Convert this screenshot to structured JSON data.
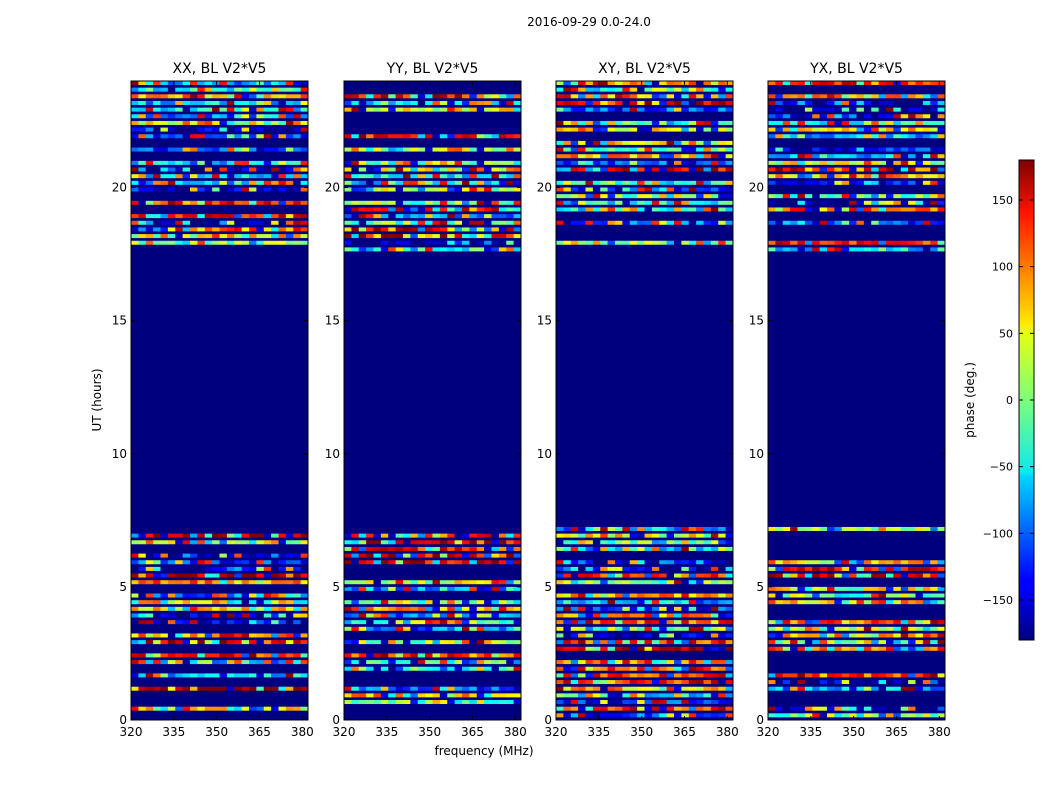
{
  "figure": {
    "suptitle": "2016-09-29 0.0-24.0"
  },
  "chart_data": {
    "type": "heatmap",
    "title": "2016-09-29 0.0-24.0",
    "xlabel": "frequency (MHz)",
    "ylabel": "UT (hours)",
    "xlim": [
      320,
      382
    ],
    "ylim": [
      0,
      24
    ],
    "x_ticks": [
      "320",
      "335",
      "350",
      "365",
      "380"
    ],
    "y_ticks": [
      "0",
      "5",
      "10",
      "15",
      "20"
    ],
    "panels": [
      {
        "title": "XX, BL V2*V5",
        "key": "xx"
      },
      {
        "title": "YY, BL V2*V5",
        "key": "yy"
      },
      {
        "title": "XY, BL V2*V5",
        "key": "xy"
      },
      {
        "title": "YX, BL V2*V5",
        "key": "yx"
      }
    ],
    "colorbar": {
      "label": "phase (deg.)",
      "range": [
        -180,
        180
      ],
      "ticks": [
        "150",
        "100",
        "50",
        "0",
        "−50",
        "−100",
        "−150"
      ],
      "colormap": "jet"
    },
    "masked_interval_hours": [
      7.1,
      17.5
    ],
    "masked_color": "#00007f"
  }
}
